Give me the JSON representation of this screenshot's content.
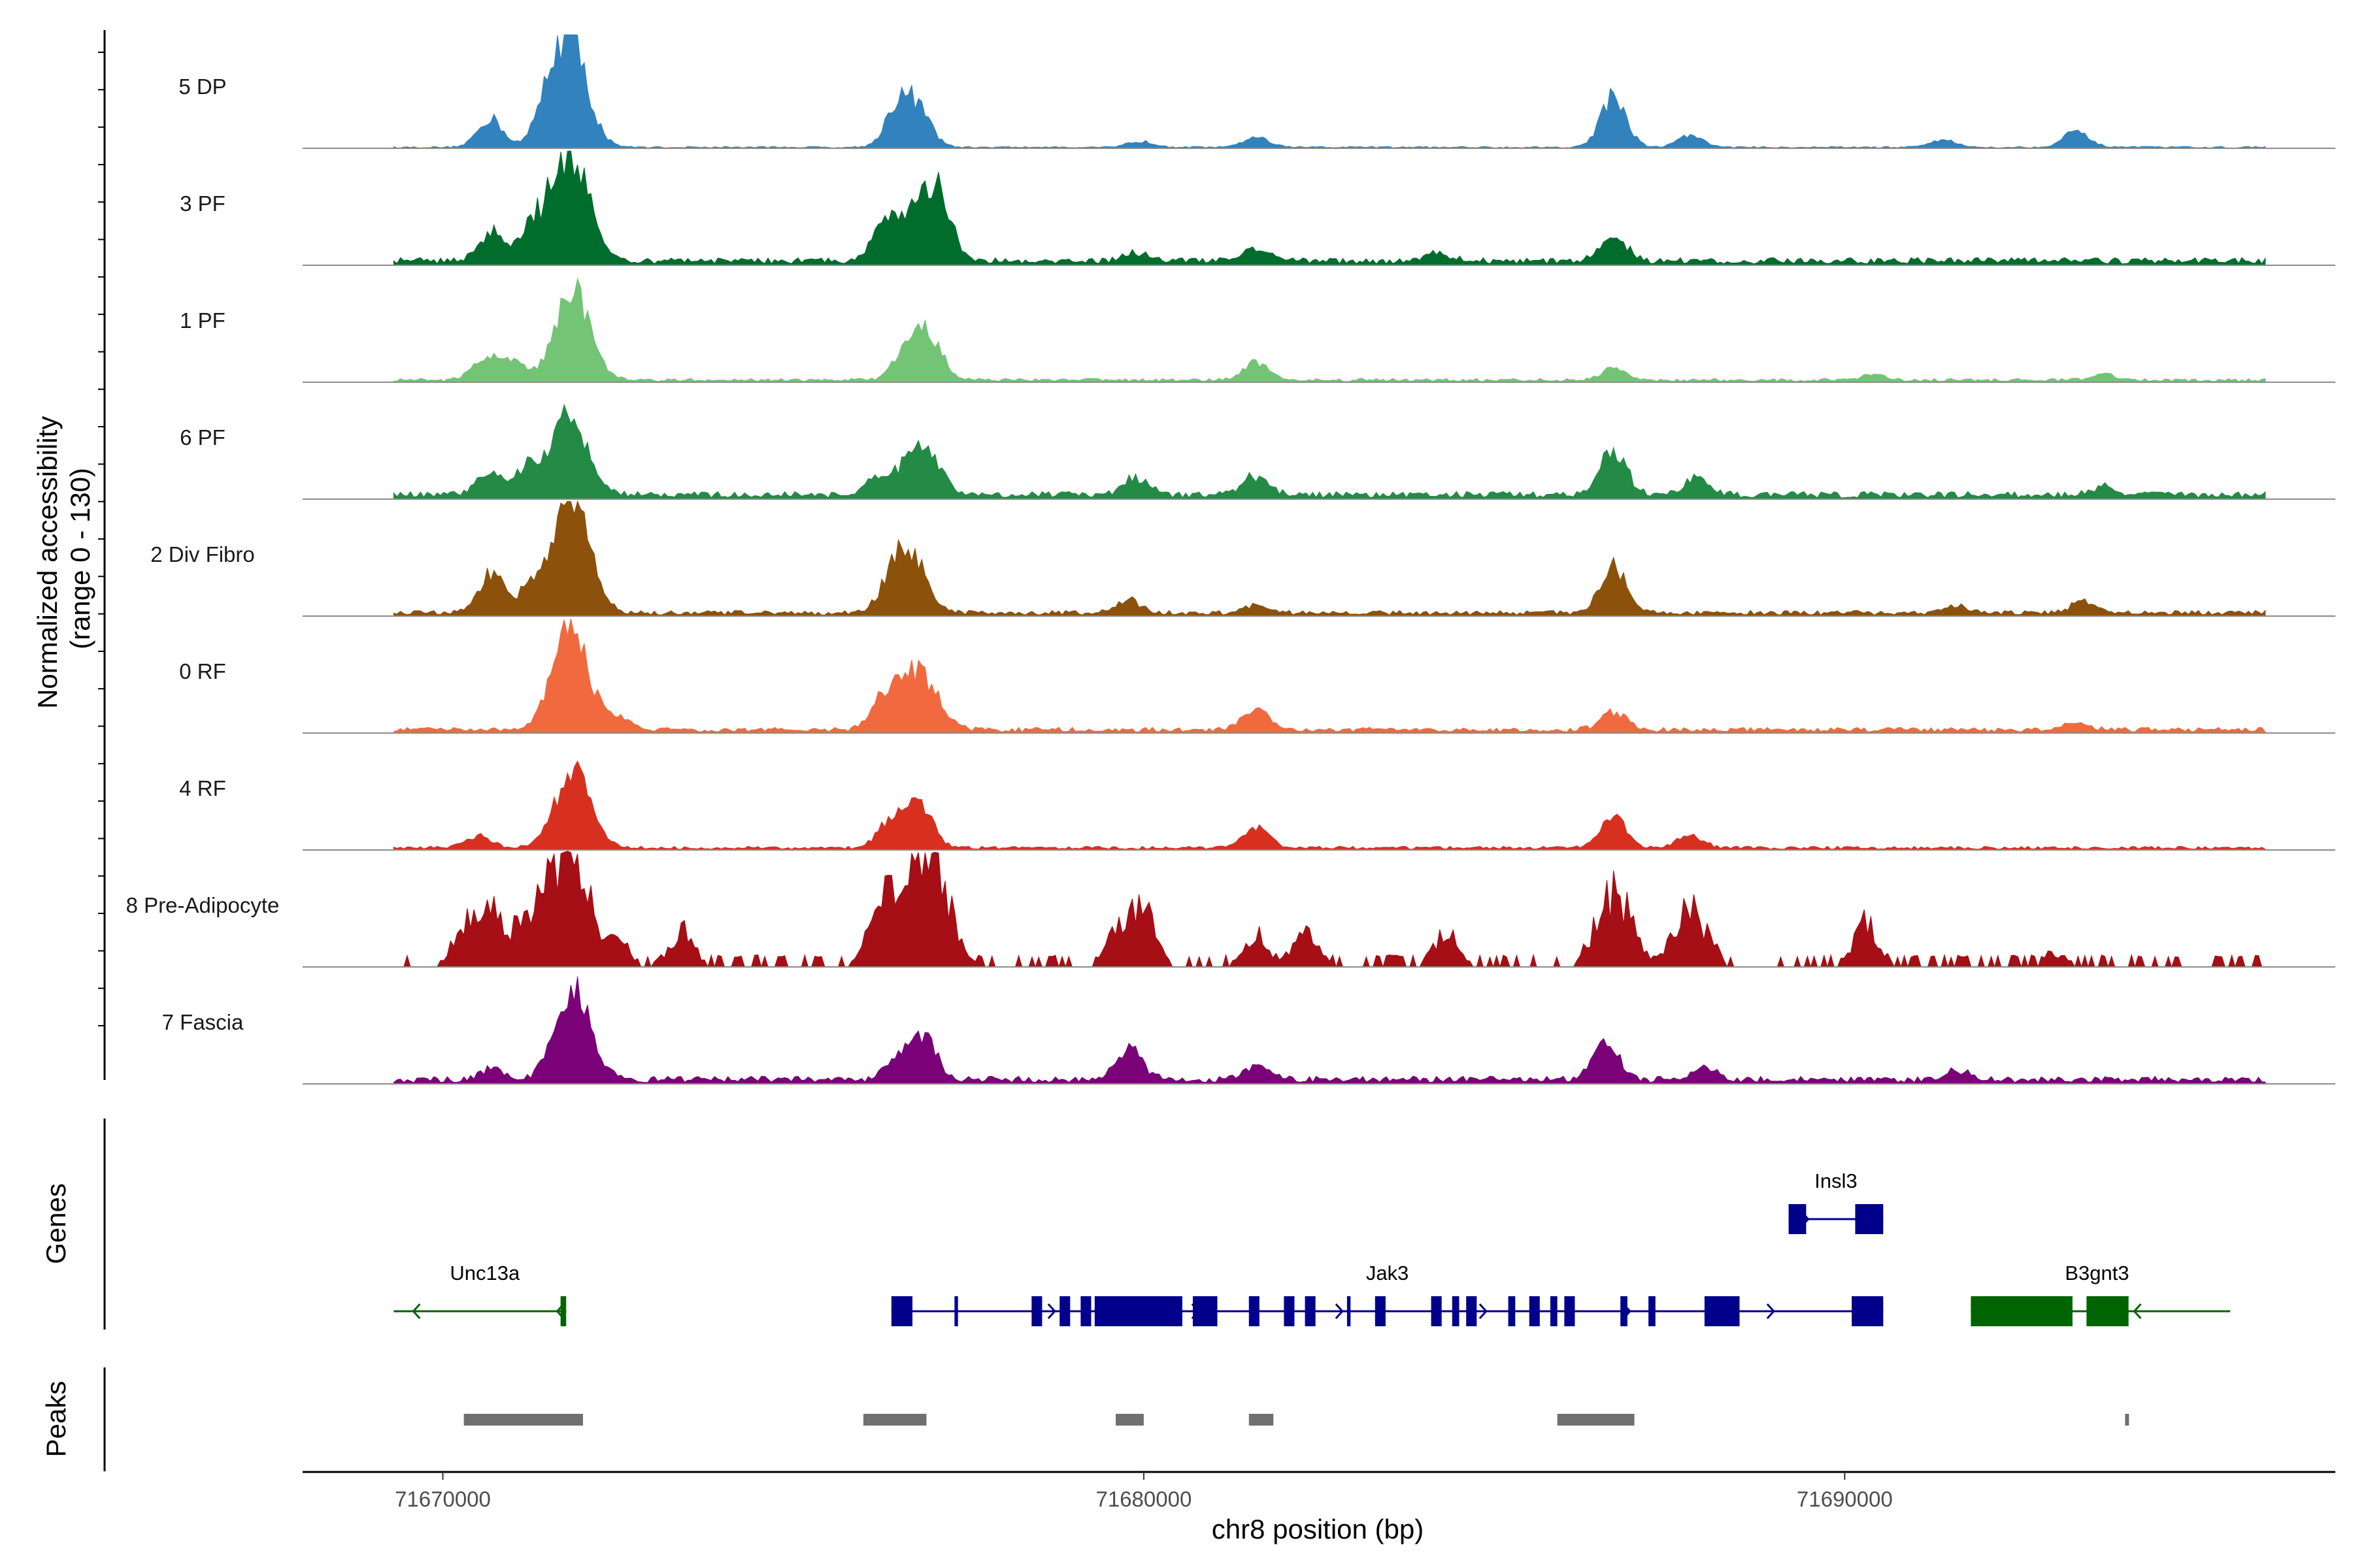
{
  "chart_data": {
    "type": "area",
    "title": "",
    "chromosome": "chr8",
    "xlabel": "chr8 position (bp)",
    "ylabel": "Normalized accessibility\n(range 0 - 130)",
    "ylim": [
      0,
      130
    ],
    "xlim": [
      71668000,
      71697000
    ],
    "xticks": [
      71670000,
      71680000,
      71690000
    ],
    "xtick_labels": [
      "71670000",
      "71680000",
      "71690000"
    ],
    "grid": false,
    "panel_labels": [
      "Genes",
      "Peaks"
    ],
    "tracks": [
      {
        "name": "5 DP",
        "color": "#3182bd",
        "baseline": 0.01,
        "dense": false,
        "peaks": [
          [
            71670680,
            34
          ],
          [
            71671800,
            128
          ],
          [
            71671500,
            28
          ],
          [
            71676500,
            50
          ],
          [
            71676800,
            38
          ],
          [
            71679950,
            7
          ],
          [
            71681600,
            12
          ],
          [
            71686700,
            60
          ],
          [
            71687800,
            14
          ],
          [
            71691400,
            9
          ],
          [
            71693300,
            18
          ]
        ]
      },
      {
        "name": "3 PF",
        "color": "#006d2c",
        "baseline": 0.04,
        "dense": false,
        "peaks": [
          [
            71670700,
            35
          ],
          [
            71671300,
            42
          ],
          [
            71671820,
            128
          ],
          [
            71676300,
            40
          ],
          [
            71676800,
            65
          ],
          [
            71677100,
            55
          ],
          [
            71679900,
            9
          ],
          [
            71681600,
            14
          ],
          [
            71684200,
            9
          ],
          [
            71686700,
            30
          ]
        ]
      },
      {
        "name": "1 PF",
        "color": "#74c476",
        "baseline": 0.02,
        "dense": false,
        "peaks": [
          [
            71670600,
            25
          ],
          [
            71671000,
            20
          ],
          [
            71671850,
            105
          ],
          [
            71676600,
            35
          ],
          [
            71676950,
            52
          ],
          [
            71681600,
            20
          ],
          [
            71686700,
            14
          ],
          [
            71690400,
            7
          ],
          [
            71693700,
            7
          ]
        ]
      },
      {
        "name": "6 PF",
        "color": "#238b45",
        "baseline": 0.04,
        "dense": false,
        "peaks": [
          [
            71670650,
            28
          ],
          [
            71671200,
            30
          ],
          [
            71671800,
            88
          ],
          [
            71676200,
            18
          ],
          [
            71676800,
            62
          ],
          [
            71679900,
            20
          ],
          [
            71681600,
            22
          ],
          [
            71686700,
            52
          ],
          [
            71687900,
            20
          ],
          [
            71693700,
            10
          ]
        ]
      },
      {
        "name": "2 Div Fibro",
        "color": "#8c510a",
        "baseline": 0.03,
        "dense": false,
        "peaks": [
          [
            71670700,
            45
          ],
          [
            71671300,
            35
          ],
          [
            71671850,
            150
          ],
          [
            71676600,
            78
          ],
          [
            71679800,
            14
          ],
          [
            71681600,
            10
          ],
          [
            71686700,
            55
          ],
          [
            71691600,
            7
          ],
          [
            71693400,
            14
          ]
        ]
      },
      {
        "name": "0 RF",
        "color": "#f16a3f",
        "baseline": 0.03,
        "dense": false,
        "peaks": [
          [
            71671820,
            128
          ],
          [
            71672500,
            14
          ],
          [
            71676300,
            40
          ],
          [
            71676800,
            70
          ],
          [
            71681600,
            25
          ],
          [
            71686700,
            20
          ],
          [
            71693300,
            8
          ]
        ]
      },
      {
        "name": "4 RF",
        "color": "#d7301f",
        "baseline": 0.02,
        "dense": false,
        "peaks": [
          [
            71670500,
            14
          ],
          [
            71671850,
            90
          ],
          [
            71676400,
            32
          ],
          [
            71676800,
            55
          ],
          [
            71681600,
            25
          ],
          [
            71686700,
            34
          ],
          [
            71687800,
            15
          ]
        ]
      },
      {
        "name": "8 Pre-Adipocyte",
        "color": "#a50f15",
        "baseline": 0.0,
        "dense": true,
        "peaks": [
          [
            71670300,
            40
          ],
          [
            71670700,
            75
          ],
          [
            71671300,
            45
          ],
          [
            71671800,
            165
          ],
          [
            71672500,
            30
          ],
          [
            71673400,
            45
          ],
          [
            71676200,
            52
          ],
          [
            71676600,
            108
          ],
          [
            71677000,
            115
          ],
          [
            71679700,
            55
          ],
          [
            71680000,
            60
          ],
          [
            71681600,
            42
          ],
          [
            71682300,
            42
          ],
          [
            71684300,
            45
          ],
          [
            71686700,
            95
          ],
          [
            71687800,
            70
          ],
          [
            71690300,
            58
          ],
          [
            71693000,
            18
          ]
        ]
      },
      {
        "name": "7 Fascia",
        "color": "#7a0177",
        "baseline": 0.04,
        "dense": false,
        "peaks": [
          [
            71670700,
            12
          ],
          [
            71671850,
            105
          ],
          [
            71676500,
            22
          ],
          [
            71676850,
            50
          ],
          [
            71679800,
            38
          ],
          [
            71681600,
            16
          ],
          [
            71686600,
            45
          ],
          [
            71688000,
            12
          ],
          [
            71691600,
            10
          ]
        ]
      }
    ],
    "genes": [
      {
        "name": "Unc13a",
        "color": "#006400",
        "strand": "-",
        "row": 0,
        "start": 71669300,
        "end": 71671760,
        "exons": [
          [
            71671680,
            71671760
          ]
        ]
      },
      {
        "name": "Jak3",
        "color": "#00008b",
        "strand": "+",
        "row": 0,
        "start": 71676400,
        "end": 71690550,
        "exons": [
          [
            71676400,
            71676700
          ],
          [
            71677300,
            71677350
          ],
          [
            71678400,
            71678550
          ],
          [
            71678800,
            71678950
          ],
          [
            71679100,
            71679250
          ],
          [
            71679300,
            71680550
          ],
          [
            71680700,
            71681050
          ],
          [
            71681500,
            71681650
          ],
          [
            71682000,
            71682150
          ],
          [
            71682300,
            71682450
          ],
          [
            71682900,
            71682950
          ],
          [
            71683300,
            71683450
          ],
          [
            71684100,
            71684250
          ],
          [
            71684400,
            71684500
          ],
          [
            71684600,
            71684750
          ],
          [
            71685200,
            71685300
          ],
          [
            71685500,
            71685650
          ],
          [
            71685800,
            71685900
          ],
          [
            71686000,
            71686150
          ],
          [
            71686800,
            71686900
          ],
          [
            71687200,
            71687300
          ],
          [
            71688000,
            71688500
          ],
          [
            71690100,
            71690550
          ]
        ]
      },
      {
        "name": "Insl3",
        "color": "#00008b",
        "strand": "+",
        "row": 1,
        "start": 71689200,
        "end": 71690550,
        "exons": [
          [
            71689200,
            71689450
          ],
          [
            71690150,
            71690550
          ]
        ]
      },
      {
        "name": "B3gnt3",
        "color": "#006400",
        "strand": "-",
        "row": 0,
        "start": 71691800,
        "end": 71695500,
        "exons": [
          [
            71691800,
            71693250
          ],
          [
            71693450,
            71694050
          ]
        ]
      }
    ],
    "peaks": [
      [
        71670300,
        71672000
      ],
      [
        71676000,
        71676900
      ],
      [
        71679600,
        71680000
      ],
      [
        71681500,
        71681850
      ],
      [
        71685900,
        71687000
      ],
      [
        71694000,
        71694050
      ]
    ]
  }
}
